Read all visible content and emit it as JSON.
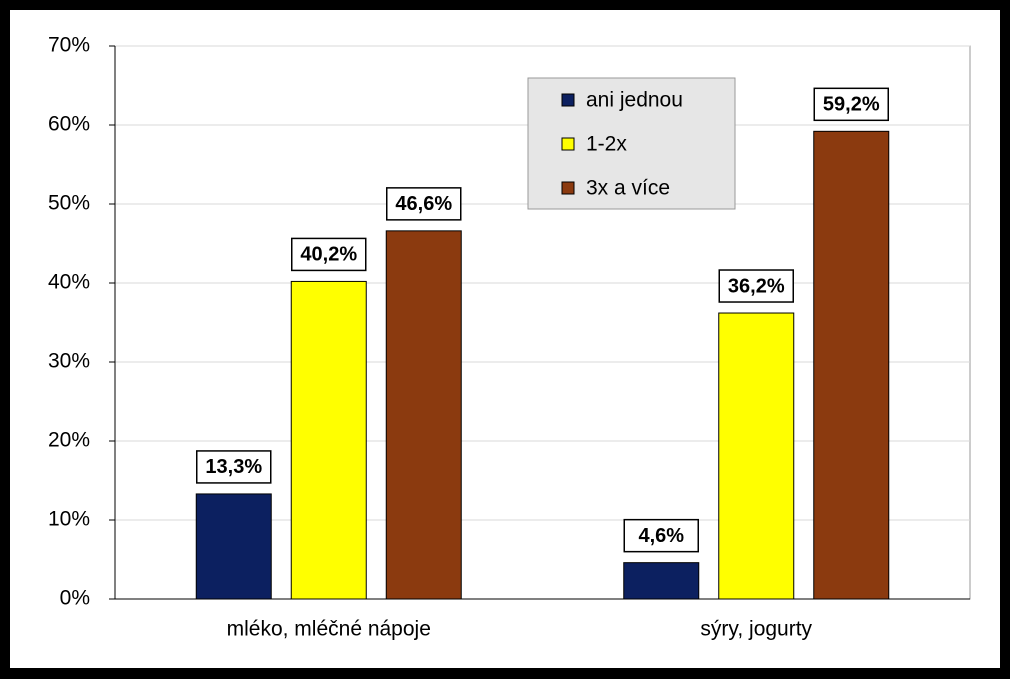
{
  "chart_data": {
    "type": "bar",
    "categories": [
      "mléko, mléčné nápoje",
      "sýry, jogurty"
    ],
    "series": [
      {
        "name": "ani jednou",
        "color": "#0c2060",
        "values": [
          13.3,
          4.6
        ],
        "value_labels": [
          "13,3%",
          "4,6%"
        ]
      },
      {
        "name": "1-2x",
        "color": "#ffff00",
        "values": [
          40.2,
          36.2
        ],
        "value_labels": [
          "40,2%",
          "36,2%"
        ]
      },
      {
        "name": "3x a více",
        "color": "#8b3a0f",
        "values": [
          46.6,
          59.2
        ],
        "value_labels": [
          "46,6%",
          "59,2%"
        ]
      }
    ],
    "ylim": [
      0,
      70
    ],
    "yticks": [
      {
        "value": 0,
        "label": "0%"
      },
      {
        "value": 10,
        "label": "10%"
      },
      {
        "value": 20,
        "label": "20%"
      },
      {
        "value": 30,
        "label": "30%"
      },
      {
        "value": 40,
        "label": "40%"
      },
      {
        "value": 50,
        "label": "50%"
      },
      {
        "value": 60,
        "label": "60%"
      },
      {
        "value": 70,
        "label": "70%"
      }
    ],
    "grid": true,
    "legend": "top-right"
  }
}
